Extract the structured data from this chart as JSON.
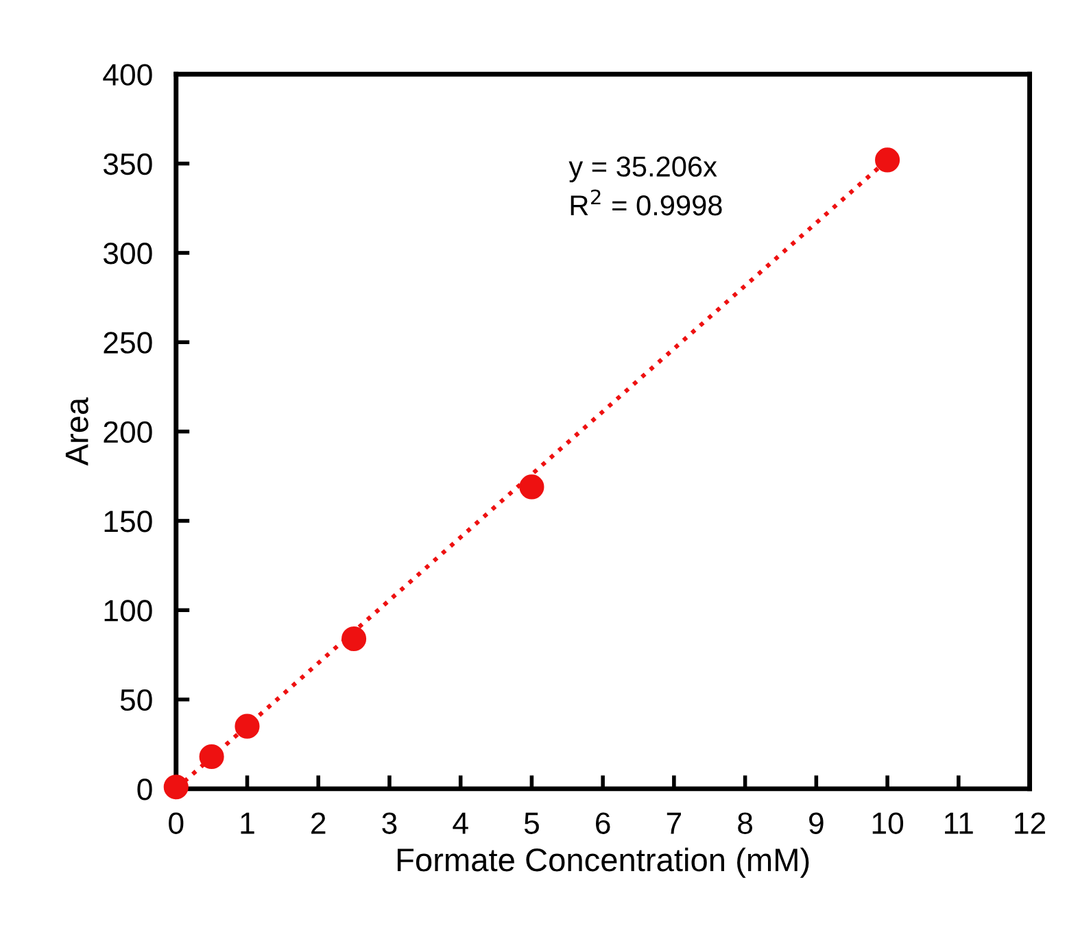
{
  "chart_data": {
    "type": "scatter",
    "xlabel": "Formate Concentration (mM)",
    "ylabel": "Area",
    "xlim": [
      0,
      12
    ],
    "xticks": [
      0,
      1,
      2,
      3,
      4,
      5,
      6,
      7,
      8,
      9,
      10,
      11,
      12
    ],
    "ylim": [
      0,
      400
    ],
    "yticks": [
      0,
      50,
      100,
      150,
      200,
      250,
      300,
      350,
      400
    ],
    "grid": false,
    "legend": false,
    "series": [
      {
        "color": "#ee1111",
        "marker": "circle",
        "x": [
          0,
          0.5,
          1,
          2.5,
          5,
          10
        ],
        "values": [
          1,
          18,
          35,
          84,
          169,
          352
        ]
      },
      {
        "type": "line",
        "color": "#ee1111",
        "line_style": "dotted",
        "marker": "none",
        "x": [
          0,
          10
        ],
        "values": [
          0,
          352
        ]
      }
    ],
    "annotations": [
      "y = 35.206x\nR$^{2}$ = 0.9998"
    ]
  }
}
